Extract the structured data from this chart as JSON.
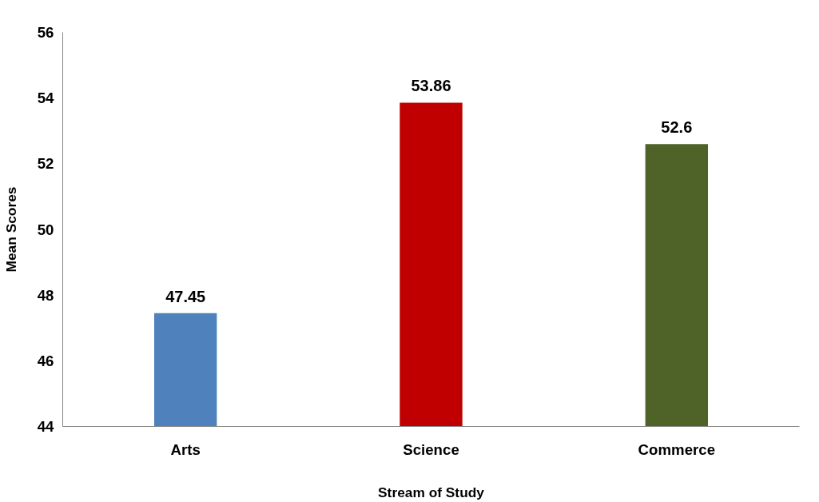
{
  "chart_data": {
    "type": "bar",
    "xlabel": "Stream of Study",
    "ylabel": "Mean Scores",
    "categories": [
      "Arts",
      "Science",
      "Commerce"
    ],
    "values": [
      47.45,
      53.86,
      52.6
    ],
    "colors": [
      "#4f81bd",
      "#c00000",
      "#4f6228"
    ],
    "ylim": [
      44,
      56
    ],
    "yticks": [
      44,
      46,
      48,
      50,
      52,
      54,
      56
    ],
    "grid": false,
    "data_labels": true
  }
}
